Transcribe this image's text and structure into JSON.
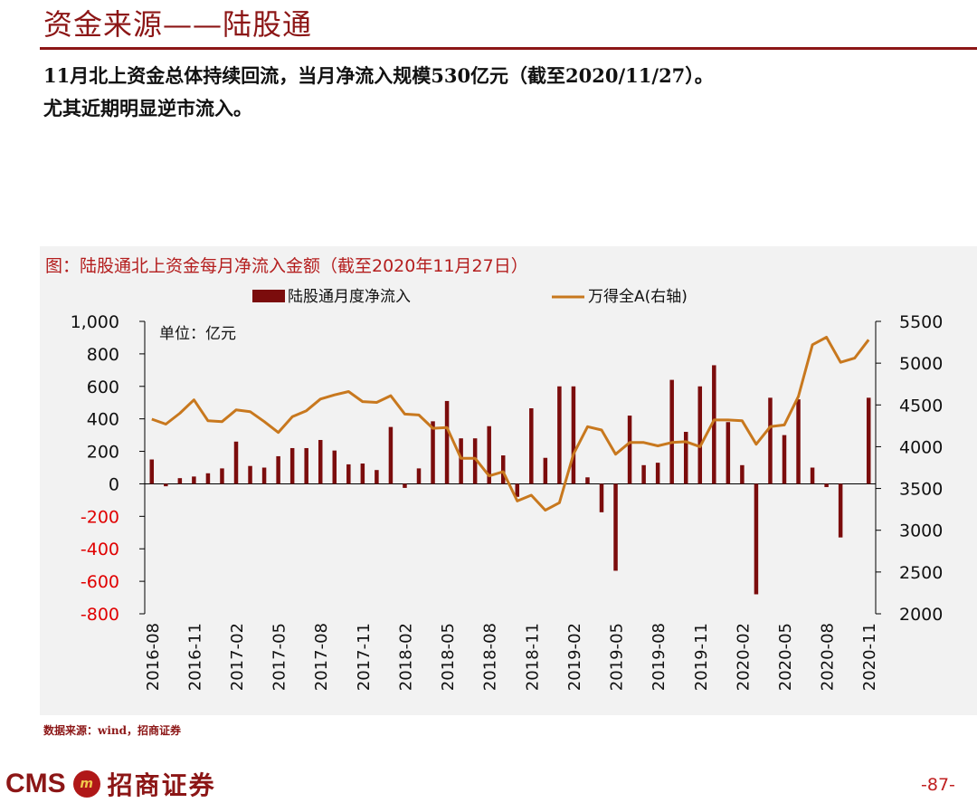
{
  "header": {
    "title": "资金来源——陆股通",
    "summary_line1": "11月北上资金总体持续回流，当月净流入规模530亿元（截至2020/11/27）。",
    "summary_line2": "尤其近期明显逆市流入。"
  },
  "chart_data": {
    "type": "bar+line",
    "title": "图：陆股通北上资金每月净流入金额（截至2020年11月27日）",
    "unit_label": "单位：亿元",
    "legend": [
      "陆股通月度净流入",
      "万得全A(右轴)"
    ],
    "colors": {
      "bar": "#7b0c0c",
      "line": "#c8781e",
      "negative_tick": "#e00000",
      "title": "#b41e1e"
    },
    "months": [
      "2016-08",
      "2016-09",
      "2016-10",
      "2016-11",
      "2016-12",
      "2017-01",
      "2017-02",
      "2017-03",
      "2017-04",
      "2017-05",
      "2017-06",
      "2017-07",
      "2017-08",
      "2017-09",
      "2017-10",
      "2017-11",
      "2017-12",
      "2018-01",
      "2018-02",
      "2018-03",
      "2018-04",
      "2018-05",
      "2018-06",
      "2018-07",
      "2018-08",
      "2018-09",
      "2018-10",
      "2018-11",
      "2018-12",
      "2019-01",
      "2019-02",
      "2019-03",
      "2019-04",
      "2019-05",
      "2019-06",
      "2019-07",
      "2019-08",
      "2019-09",
      "2019-10",
      "2019-11",
      "2019-12",
      "2020-01",
      "2020-02",
      "2020-03",
      "2020-04",
      "2020-05",
      "2020-06",
      "2020-07",
      "2020-08",
      "2020-09",
      "2020-10",
      "2020-11"
    ],
    "x_tick_labels": [
      "2016-08",
      "2016-11",
      "2017-02",
      "2017-05",
      "2017-08",
      "2017-11",
      "2018-02",
      "2018-05",
      "2018-08",
      "2018-11",
      "2019-02",
      "2019-05",
      "2019-08",
      "2019-11",
      "2020-02",
      "2020-05",
      "2020-08",
      "2020-11"
    ],
    "net_inflow": [
      150,
      -15,
      35,
      45,
      65,
      95,
      260,
      110,
      100,
      170,
      220,
      220,
      270,
      205,
      120,
      125,
      85,
      350,
      -25,
      95,
      385,
      510,
      280,
      280,
      355,
      175,
      -80,
      465,
      160,
      600,
      600,
      40,
      -175,
      -535,
      420,
      115,
      130,
      640,
      320,
      600,
      730,
      380,
      115,
      -680,
      530,
      300,
      520,
      100,
      -20,
      -330,
      null,
      530
    ],
    "wind_all_a": [
      4330,
      4270,
      4400,
      4560,
      4310,
      4300,
      4440,
      4420,
      4300,
      4170,
      4360,
      4430,
      4570,
      4620,
      4660,
      4540,
      4530,
      4610,
      4390,
      4380,
      4220,
      4230,
      3860,
      3860,
      3650,
      3700,
      3350,
      3420,
      3240,
      3330,
      3910,
      4240,
      4200,
      3910,
      4050,
      4050,
      4010,
      4050,
      4060,
      4000,
      4320,
      4320,
      4310,
      4030,
      4240,
      4260,
      4600,
      5220,
      5310,
      5010,
      5060,
      5280
    ],
    "y_left": {
      "min": -800,
      "max": 1000,
      "step": 200,
      "tick_labels": [
        "-800",
        "-600",
        "-400",
        "-200",
        "0",
        "200",
        "400",
        "600",
        "800",
        "1,000"
      ]
    },
    "y_right": {
      "min": 2000,
      "max": 5500,
      "step": 500,
      "tick_labels": [
        "2000",
        "2500",
        "3000",
        "3500",
        "4000",
        "4500",
        "5000",
        "5500"
      ]
    }
  },
  "footer": {
    "source": "数据来源：wind，招商证券",
    "logo_text": "CMS",
    "logo_cn": "招商证券",
    "page_number": "-87-"
  }
}
